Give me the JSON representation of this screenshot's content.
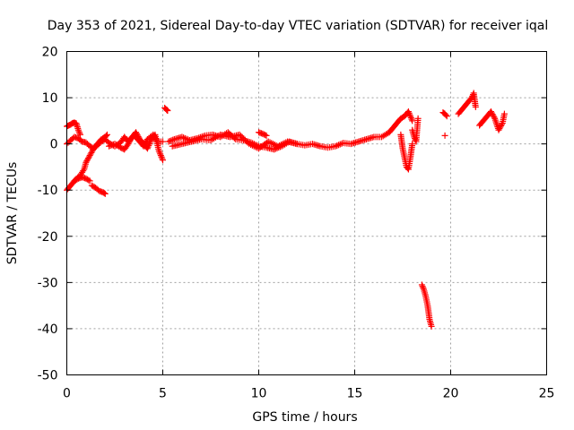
{
  "chart_data": {
    "type": "scatter",
    "title": "Day 353 of 2021, Sidereal Day-to-day VTEC variation (SDTVAR) for receiver iqal",
    "xlabel": "GPS time / hours",
    "ylabel": "SDTVAR / TECUs",
    "xlim": [
      0,
      25
    ],
    "ylim": [
      -50,
      20
    ],
    "xticks": [
      0,
      5,
      10,
      15,
      20,
      25
    ],
    "yticks": [
      -50,
      -40,
      -30,
      -20,
      -10,
      0,
      10,
      20
    ],
    "grid": true,
    "marker": "+",
    "color": "#ff0000",
    "series": [
      {
        "name": "SDTVAR",
        "segments": [
          {
            "x": [
              0.0,
              0.1,
              0.2,
              0.3,
              0.4,
              0.5,
              0.6,
              0.7
            ],
            "y": [
              3.8,
              4.0,
              4.2,
              4.5,
              4.6,
              4.4,
              3.0,
              2.0
            ]
          },
          {
            "x": [
              0.0,
              0.2,
              0.4,
              0.6,
              0.8,
              1.0,
              1.2,
              1.4,
              1.6,
              1.8,
              2.0,
              2.2,
              2.5,
              2.8,
              3.0,
              3.2,
              3.5,
              3.8,
              4.0,
              4.2,
              4.5,
              4.7,
              5.0
            ],
            "y": [
              0.0,
              0.8,
              1.5,
              1.2,
              0.5,
              0.3,
              -0.5,
              -1.0,
              -0.3,
              0.5,
              1.0,
              0.2,
              -0.5,
              0.3,
              1.5,
              0.5,
              1.8,
              0.5,
              -0.5,
              1.0,
              2.0,
              0.5,
              0.5
            ]
          },
          {
            "x": [
              0.0,
              0.1,
              0.2,
              0.3,
              0.5,
              0.7,
              0.9,
              1.0,
              1.2,
              1.4,
              1.6,
              1.8,
              2.0,
              2.1
            ],
            "y": [
              -10.0,
              -9.5,
              -9.0,
              -8.5,
              -7.5,
              -6.8,
              -5.5,
              -4.0,
              -2.5,
              -1.0,
              0.0,
              1.0,
              1.5,
              2.0
            ]
          },
          {
            "x": [
              0.4,
              0.6,
              0.8,
              1.0,
              1.2
            ],
            "y": [
              -8.0,
              -7.5,
              -7.2,
              -7.5,
              -8.0
            ]
          },
          {
            "x": [
              1.3,
              1.5,
              1.7,
              1.9,
              2.0
            ],
            "y": [
              -9.0,
              -9.5,
              -10.2,
              -10.5,
              -10.8
            ]
          },
          {
            "x": [
              2.2,
              2.5,
              2.8,
              3.0,
              3.2,
              3.4,
              3.6,
              3.8,
              4.0,
              4.2,
              4.4,
              4.6,
              4.8,
              5.0
            ],
            "y": [
              -0.5,
              0.0,
              -0.8,
              -1.2,
              0.0,
              1.5,
              2.5,
              1.0,
              0.0,
              -1.0,
              1.0,
              2.0,
              -1.5,
              -3.5
            ]
          },
          {
            "x": [
              5.1,
              5.2,
              5.25
            ],
            "y": [
              7.8,
              7.4,
              7.2
            ]
          },
          {
            "x": [
              5.3,
              5.6,
              6.0,
              6.4,
              6.8,
              7.2,
              7.6,
              8.0,
              8.4,
              8.8,
              9.2,
              9.6,
              10.0,
              10.4,
              10.8,
              11.2,
              11.6,
              12.0,
              12.4,
              12.8,
              13.2,
              13.6,
              14.0,
              14.4,
              14.8,
              15.2,
              15.6,
              16.0,
              16.4,
              16.8
            ],
            "y": [
              0.5,
              1.0,
              1.5,
              0.8,
              1.2,
              1.8,
              2.0,
              1.5,
              2.5,
              1.0,
              0.8,
              0.3,
              -0.5,
              -0.8,
              -1.2,
              -0.5,
              0.5,
              0.0,
              -0.3,
              0.0,
              -0.5,
              -0.8,
              -0.5,
              0.2,
              0.0,
              0.5,
              1.0,
              1.5,
              1.5,
              2.5
            ]
          },
          {
            "x": [
              5.5,
              6.0,
              6.5,
              7.0,
              7.5,
              8.0,
              8.5,
              9.0,
              9.5,
              10.0,
              10.5,
              11.0,
              11.5,
              12.0
            ],
            "y": [
              -0.5,
              0.0,
              0.5,
              1.0,
              0.8,
              2.0,
              1.5,
              2.0,
              0.0,
              -1.0,
              0.5,
              -0.5,
              0.5,
              0.0
            ]
          },
          {
            "x": [
              10.0,
              10.2,
              10.4
            ],
            "y": [
              2.5,
              2.2,
              1.8
            ]
          },
          {
            "x": [
              16.8,
              17.0,
              17.2,
              17.4,
              17.6,
              17.8,
              18.0
            ],
            "y": [
              2.5,
              3.5,
              4.5,
              5.5,
              6.0,
              7.0,
              5.0
            ]
          },
          {
            "x": [
              17.4,
              17.5,
              17.6,
              17.7,
              17.8,
              17.9,
              18.0
            ],
            "y": [
              2.0,
              -1.0,
              -3.0,
              -5.0,
              -5.5,
              -3.0,
              0.0
            ]
          },
          {
            "x": [
              18.0,
              18.1,
              18.2,
              18.3
            ],
            "y": [
              3.0,
              1.5,
              0.5,
              5.5
            ]
          },
          {
            "x": [
              18.5,
              18.6,
              18.7,
              18.8,
              18.9,
              19.0
            ],
            "y": [
              -30.5,
              -31.5,
              -33.0,
              -35.0,
              -38.0,
              -39.5
            ]
          },
          {
            "x": [
              19.6,
              19.7,
              19.8
            ],
            "y": [
              6.8,
              6.5,
              6.0
            ]
          },
          {
            "x": [
              19.7
            ],
            "y": [
              1.8
            ]
          },
          {
            "x": [
              20.4,
              20.6,
              20.8,
              21.0,
              21.1,
              21.2,
              21.3
            ],
            "y": [
              6.5,
              7.5,
              8.5,
              9.5,
              10.0,
              11.0,
              8.0
            ]
          },
          {
            "x": [
              21.5,
              21.7,
              21.9,
              22.1,
              22.3,
              22.5,
              22.7,
              22.8
            ],
            "y": [
              4.0,
              5.0,
              6.0,
              7.0,
              5.5,
              3.0,
              4.5,
              6.5
            ]
          }
        ]
      }
    ]
  }
}
